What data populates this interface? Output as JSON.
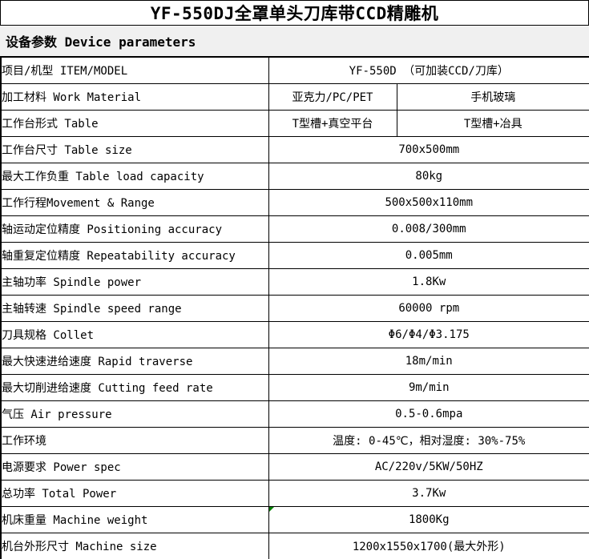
{
  "title": "YF-550DJ全罩单头刀库带CCD精雕机",
  "section_header": "设备参数 Device parameters",
  "colors": {
    "band_bg": "#f0f0f0",
    "table_border": "#000000",
    "comment_marker": "#008000"
  },
  "table": {
    "rows": [
      {
        "label": "项目/机型 ITEM/MODEL",
        "values": [
          "YF-550D （可加装CCD/刀库）"
        ]
      },
      {
        "label": "加工材料 Work Material",
        "values": [
          "亚克力/PC/PET",
          "手机玻璃"
        ]
      },
      {
        "label": "工作台形式 Table",
        "values": [
          "T型槽+真空平台",
          "T型槽+冶具"
        ]
      },
      {
        "label": "工作台尺寸 Table size",
        "values": [
          "700x500mm"
        ]
      },
      {
        "label": "最大工作负重 Table load capacity",
        "values": [
          "80kg"
        ]
      },
      {
        "label": "工作行程Movement & Range",
        "values": [
          "500x500x110mm"
        ]
      },
      {
        "label": "轴运动定位精度 Positioning accuracy",
        "values": [
          "0.008/300mm"
        ]
      },
      {
        "label": "轴重复定位精度 Repeatability accuracy",
        "values": [
          "0.005mm"
        ]
      },
      {
        "label": "主轴功率 Spindle power",
        "values": [
          "1.8Kw"
        ]
      },
      {
        "label": "主轴转速 Spindle speed range",
        "values": [
          "60000 rpm"
        ]
      },
      {
        "label": "刀具规格 Collet",
        "values": [
          "Φ6/Φ4/Φ3.175"
        ]
      },
      {
        "label": "最大快速进给速度 Rapid traverse",
        "values": [
          "18m/min"
        ]
      },
      {
        "label": "最大切削进给速度 Cutting feed rate",
        "values": [
          "9m/min"
        ]
      },
      {
        "label": "气压 Air pressure",
        "values": [
          "0.5-0.6mpa"
        ]
      },
      {
        "label": "工作环境",
        "values": [
          "温度: 0-45℃，相对湿度: 30%-75%"
        ]
      },
      {
        "label": "电源要求 Power spec",
        "values": [
          "AC/220v/5KW/50HZ"
        ]
      },
      {
        "label": "总功率 Total Power",
        "values": [
          "3.7Kw"
        ]
      },
      {
        "label": "机床重量 Machine weight",
        "values": [
          "1800Kg"
        ],
        "comment_marker": true
      },
      {
        "label": "机台外形尺寸 Machine size",
        "values": [
          "1200x1550x1700(最大外形)"
        ]
      }
    ]
  }
}
